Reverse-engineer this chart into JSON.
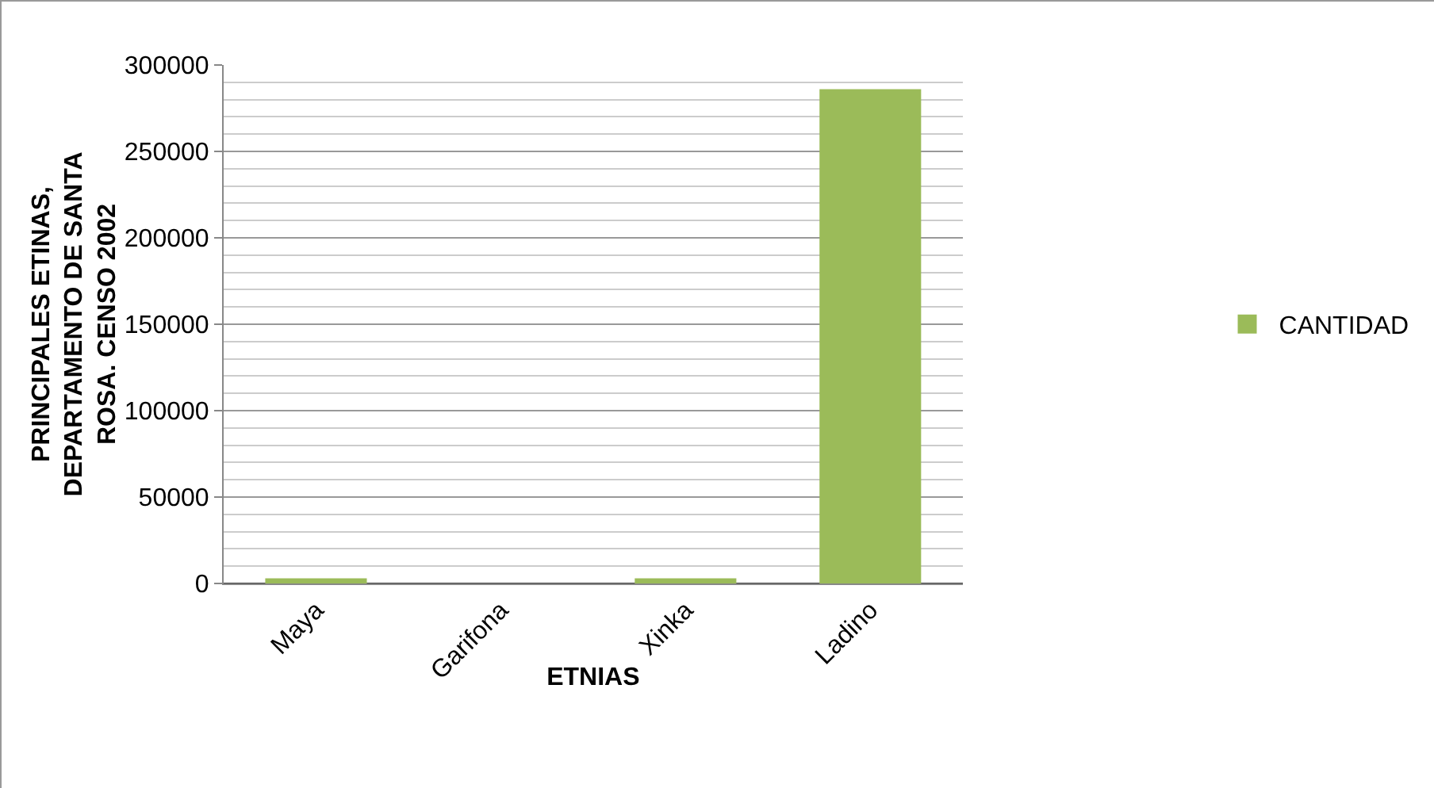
{
  "chart_data": {
    "type": "bar",
    "xlabel": "ETNIAS",
    "ylabel": "PRINCIPALES ETINAS, DEPARTAMENTO DE SANTA ROSA. CENSO 2002",
    "categories": [
      "Maya",
      "Garifona",
      "Xinka",
      "Ladino"
    ],
    "series": [
      {
        "name": "CANTIDAD",
        "color": "#9bbb59",
        "values": [
          3000,
          0,
          3000,
          286000
        ]
      }
    ],
    "ylim": [
      0,
      300000
    ],
    "yticks": [
      0,
      50000,
      100000,
      150000,
      200000,
      250000,
      300000
    ],
    "grid": "y",
    "legend": "right"
  }
}
